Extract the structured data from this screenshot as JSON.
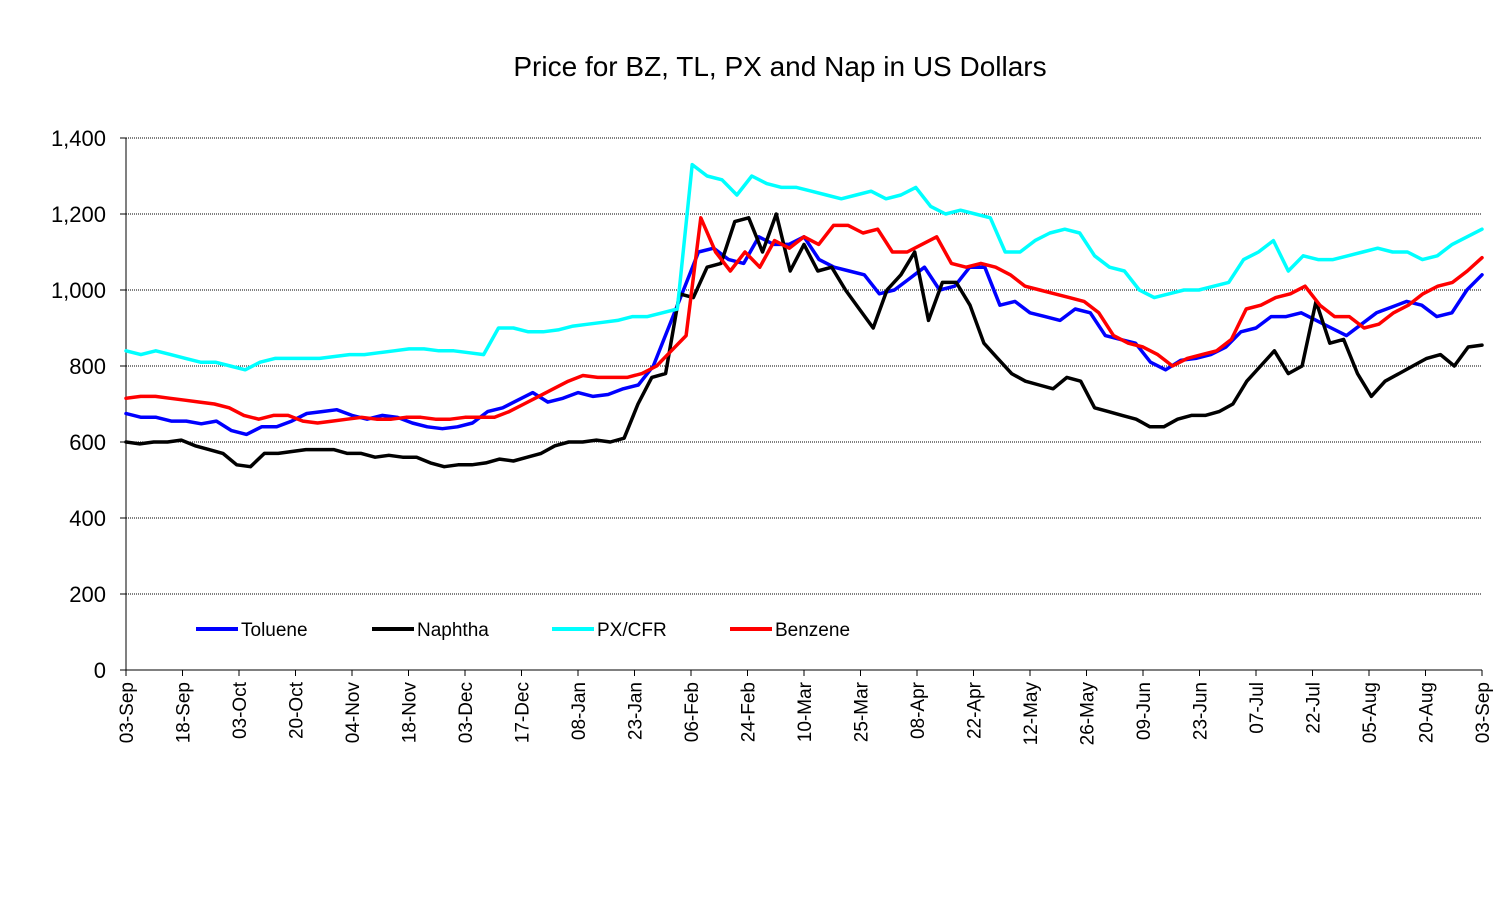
{
  "chart_data": {
    "type": "line",
    "title": "Price for BZ, TL, PX and Nap in US Dollars",
    "xlabel": "",
    "ylabel": "",
    "ylim": [
      0,
      1400
    ],
    "yticks": [
      0,
      200,
      400,
      600,
      800,
      1000,
      1200,
      1400
    ],
    "ytick_labels": [
      "0",
      "200",
      "400",
      "600",
      "800",
      "1,000",
      "1,200",
      "1,400"
    ],
    "grid": "horizontal",
    "legend_position": "bottom-left",
    "x_tick_labels": [
      "03-Sep",
      "18-Sep",
      "03-Oct",
      "20-Oct",
      "04-Nov",
      "18-Nov",
      "03-Dec",
      "17-Dec",
      "08-Jan",
      "23-Jan",
      "06-Feb",
      "24-Feb",
      "10-Mar",
      "25-Mar",
      "08-Apr",
      "22-Apr",
      "12-May",
      "26-May",
      "09-Jun",
      "23-Jun",
      "07-Jul",
      "22-Jul",
      "05-Aug",
      "20-Aug",
      "03-Sep"
    ],
    "series": [
      {
        "name": "Toluene",
        "color": "#0000ff",
        "values": [
          675,
          665,
          665,
          655,
          655,
          648,
          655,
          630,
          620,
          640,
          640,
          655,
          675,
          680,
          685,
          670,
          660,
          670,
          665,
          650,
          640,
          635,
          640,
          650,
          680,
          690,
          710,
          730,
          705,
          715,
          730,
          720,
          725,
          740,
          750,
          800,
          900,
          1000,
          1100,
          1110,
          1080,
          1070,
          1140,
          1120,
          1120,
          1140,
          1080,
          1060,
          1050,
          1040,
          990,
          1000,
          1030,
          1060,
          1000,
          1010,
          1060,
          1060,
          960,
          970,
          940,
          930,
          920,
          950,
          940,
          880,
          870,
          860,
          810,
          790,
          815,
          820,
          830,
          850,
          890,
          900,
          930,
          930,
          940,
          920,
          900,
          880,
          910,
          940,
          955,
          970,
          960,
          930,
          940,
          1000,
          1040
        ]
      },
      {
        "name": "Naphtha",
        "color": "#000000",
        "values": [
          600,
          595,
          600,
          600,
          605,
          590,
          580,
          570,
          540,
          535,
          570,
          570,
          575,
          580,
          580,
          580,
          570,
          570,
          560,
          565,
          560,
          560,
          545,
          535,
          540,
          540,
          545,
          555,
          550,
          560,
          570,
          590,
          600,
          600,
          605,
          600,
          610,
          700,
          770,
          780,
          990,
          980,
          1060,
          1070,
          1180,
          1190,
          1100,
          1200,
          1050,
          1120,
          1050,
          1060,
          1000,
          950,
          900,
          1000,
          1040,
          1100,
          920,
          1020,
          1020,
          960,
          860,
          820,
          780,
          760,
          750,
          740,
          770,
          760,
          690,
          680,
          670,
          660,
          640,
          640,
          660,
          670,
          670,
          680,
          700,
          760,
          800,
          840,
          780,
          800,
          970,
          860,
          870,
          780,
          720,
          760,
          780,
          800,
          820,
          830,
          800,
          850,
          855
        ]
      },
      {
        "name": "PX/CFR",
        "color": "#00ffff",
        "values": [
          840,
          830,
          840,
          830,
          820,
          810,
          810,
          800,
          790,
          810,
          820,
          820,
          820,
          820,
          825,
          830,
          830,
          835,
          840,
          845,
          845,
          840,
          840,
          835,
          830,
          900,
          900,
          890,
          890,
          895,
          905,
          910,
          915,
          920,
          930,
          930,
          940,
          950,
          1330,
          1300,
          1290,
          1250,
          1300,
          1280,
          1270,
          1270,
          1260,
          1250,
          1240,
          1250,
          1260,
          1240,
          1250,
          1270,
          1220,
          1200,
          1210,
          1200,
          1190,
          1100,
          1100,
          1130,
          1150,
          1160,
          1150,
          1090,
          1060,
          1050,
          1000,
          980,
          990,
          1000,
          1000,
          1010,
          1020,
          1080,
          1100,
          1130,
          1050,
          1090,
          1080,
          1080,
          1090,
          1100,
          1110,
          1100,
          1100,
          1080,
          1090,
          1120,
          1140,
          1160
        ]
      },
      {
        "name": "Benzene",
        "color": "#ff0000",
        "values": [
          715,
          720,
          720,
          715,
          710,
          705,
          700,
          690,
          670,
          660,
          670,
          670,
          655,
          650,
          655,
          660,
          665,
          660,
          660,
          665,
          665,
          660,
          660,
          665,
          665,
          665,
          680,
          700,
          720,
          740,
          760,
          775,
          770,
          770,
          770,
          780,
          800,
          840,
          880,
          1190,
          1100,
          1050,
          1100,
          1060,
          1130,
          1110,
          1140,
          1120,
          1170,
          1170,
          1150,
          1160,
          1100,
          1100,
          1120,
          1140,
          1070,
          1060,
          1070,
          1060,
          1040,
          1010,
          1000,
          990,
          980,
          970,
          940,
          880,
          860,
          850,
          830,
          800,
          820,
          830,
          840,
          870,
          950,
          960,
          980,
          990,
          1010,
          960,
          930,
          930,
          900,
          910,
          940,
          960,
          990,
          1010,
          1020,
          1050,
          1085
        ]
      }
    ]
  }
}
